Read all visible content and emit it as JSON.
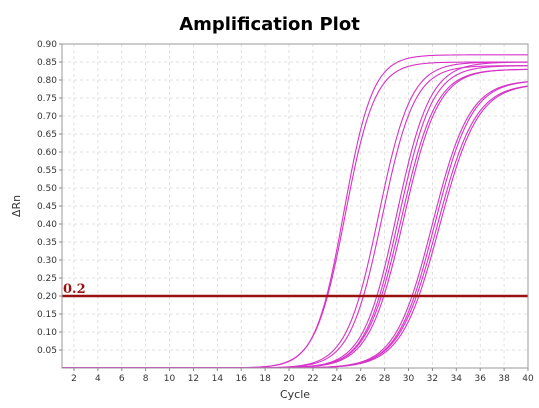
{
  "chart_data": {
    "type": "line",
    "title": "Amplification Plot",
    "xlabel": "Cycle",
    "ylabel": "ΔRn",
    "xlim": [
      1,
      40
    ],
    "ylim": [
      0,
      0.9
    ],
    "x_ticks": [
      2,
      4,
      6,
      8,
      10,
      12,
      14,
      16,
      18,
      20,
      22,
      24,
      26,
      28,
      30,
      32,
      34,
      36,
      38,
      40
    ],
    "y_ticks": [
      0.05,
      0.1,
      0.15,
      0.2,
      0.25,
      0.3,
      0.35,
      0.4,
      0.45,
      0.5,
      0.55,
      0.6,
      0.65,
      0.7,
      0.75,
      0.8,
      0.85,
      0.9
    ],
    "grid": true,
    "line_color": "#d633c8",
    "threshold": {
      "value": 0.2,
      "label": "0.2",
      "color": "#9b1010"
    },
    "curve_model": "sigmoid: y = plateau / (1 + exp(-(x - midpoint) / slope))",
    "series": [
      {
        "plateau": 0.87,
        "midpoint": 24.6,
        "slope": 1.2
      },
      {
        "plateau": 0.85,
        "midpoint": 24.7,
        "slope": 1.25
      },
      {
        "plateau": 0.85,
        "midpoint": 27.5,
        "slope": 1.35
      },
      {
        "plateau": 0.84,
        "midpoint": 27.8,
        "slope": 1.35
      },
      {
        "plateau": 0.85,
        "midpoint": 29.0,
        "slope": 1.4
      },
      {
        "plateau": 0.84,
        "midpoint": 29.2,
        "slope": 1.4
      },
      {
        "plateau": 0.83,
        "midpoint": 29.4,
        "slope": 1.45
      },
      {
        "plateau": 0.83,
        "midpoint": 29.6,
        "slope": 1.45
      },
      {
        "plateau": 0.8,
        "midpoint": 32.0,
        "slope": 1.55
      },
      {
        "plateau": 0.8,
        "midpoint": 32.2,
        "slope": 1.55
      },
      {
        "plateau": 0.79,
        "midpoint": 32.4,
        "slope": 1.6
      },
      {
        "plateau": 0.79,
        "midpoint": 32.6,
        "slope": 1.6
      }
    ]
  }
}
